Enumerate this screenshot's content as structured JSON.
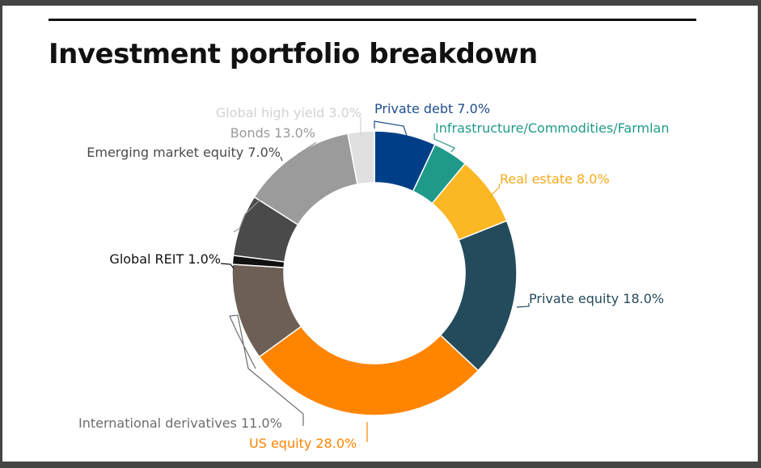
{
  "chart_data": {
    "type": "pie",
    "variant": "donut",
    "title": "Investment portfolio breakdown",
    "unit": "%",
    "slices": [
      {
        "name": "Private debt",
        "value": 7.0,
        "label": "Private debt 7.0%",
        "color": "#003F87",
        "label_color": "#1F4E8C"
      },
      {
        "name": "Infrastructure/Commodities/Farmland",
        "value": 4.0,
        "label": "Infrastructure/Commodities/Farmlan",
        "color": "#1F9A8A",
        "label_color": "#1F9A8A"
      },
      {
        "name": "Real estate",
        "value": 8.0,
        "label": "Real estate 8.0%",
        "color": "#FBB724",
        "label_color": "#F4A91A"
      },
      {
        "name": "Private equity",
        "value": 18.0,
        "label": "Private equity 18.0%",
        "color": "#244B5C",
        "label_color": "#244B5C"
      },
      {
        "name": "US equity",
        "value": 28.0,
        "label": "US equity 28.0%",
        "color": "#FF8400",
        "label_color": "#FF8400"
      },
      {
        "name": "International derivatives",
        "value": 11.0,
        "label": "International derivatives 11.0%",
        "color": "#6D5F56",
        "label_color": "#6D6D6D"
      },
      {
        "name": "Global REIT",
        "value": 1.0,
        "label": "Global REIT 1.0%",
        "color": "#111111",
        "label_color": "#111111"
      },
      {
        "name": "Emerging market equity",
        "value": 7.0,
        "label": "Emerging market equity 7.0%",
        "color": "#4A4A4A",
        "label_color": "#4A4A4A"
      },
      {
        "name": "Bonds",
        "value": 13.0,
        "label": "Bonds 13.0%",
        "color": "#9B9B9B",
        "label_color": "#9B9B9B"
      },
      {
        "name": "Global high yield",
        "value": 3.0,
        "label": "Global high yield 3.0%",
        "color": "#E0E0E0",
        "label_color": "#D2D2D2"
      }
    ],
    "start": "top",
    "direction": "clockwise",
    "legend": "none"
  }
}
